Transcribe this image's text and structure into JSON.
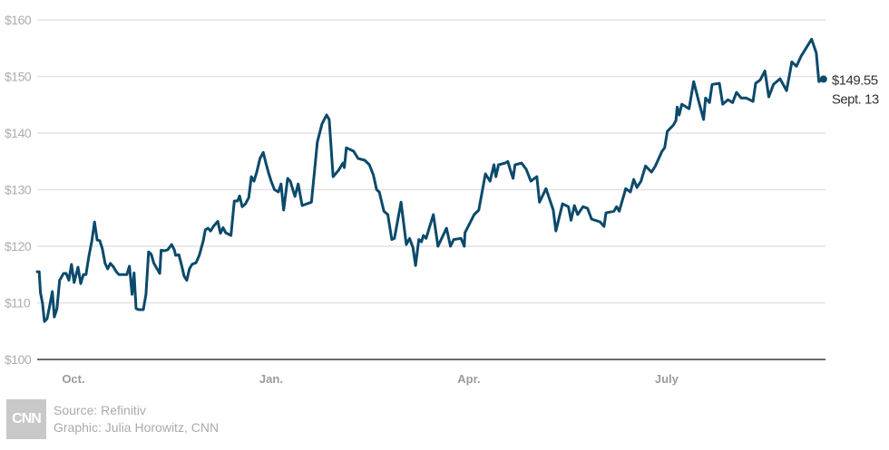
{
  "chart_data": {
    "type": "line",
    "title": "",
    "xlabel": "",
    "ylabel": "",
    "x_units": "months since Oct. 1",
    "ylim": [
      100,
      160
    ],
    "xlim": [
      -0.55,
      11.41
    ],
    "grid": true,
    "yticks": [
      100,
      110,
      120,
      130,
      140,
      150,
      160
    ],
    "ytick_labels": [
      "$100",
      "$110",
      "$120",
      "$130",
      "$140",
      "$150",
      "$160"
    ],
    "xticks": [
      0,
      3,
      6,
      9
    ],
    "xtick_labels": [
      "Oct.",
      "Jan.",
      "Apr.",
      "July"
    ],
    "line_color": "#0b4a6b",
    "series": [
      {
        "name": "Share price",
        "x": [
          -0.55,
          -0.52,
          -0.5,
          -0.47,
          -0.44,
          -0.4,
          -0.36,
          -0.32,
          -0.29,
          -0.25,
          -0.21,
          -0.15,
          -0.11,
          -0.07,
          -0.03,
          0.01,
          0.07,
          0.11,
          0.15,
          0.19,
          0.23,
          0.28,
          0.32,
          0.36,
          0.4,
          0.44,
          0.48,
          0.52,
          0.56,
          0.61,
          0.65,
          0.69,
          0.73,
          0.77,
          0.81,
          0.85,
          0.89,
          0.92,
          0.95,
          0.99,
          1.06,
          1.1,
          1.14,
          1.18,
          1.22,
          1.27,
          1.31,
          1.33,
          1.38,
          1.43,
          1.49,
          1.53,
          1.55,
          1.6,
          1.64,
          1.68,
          1.72,
          1.76,
          1.8,
          1.86,
          1.91,
          1.97,
          2.0,
          2.04,
          2.08,
          2.13,
          2.19,
          2.23,
          2.27,
          2.31,
          2.39,
          2.44,
          2.49,
          2.52,
          2.56,
          2.61,
          2.66,
          2.7,
          2.74,
          2.78,
          2.83,
          2.88,
          2.92,
          2.96,
          3.0,
          3.05,
          3.11,
          3.15,
          3.19,
          3.25,
          3.29,
          3.36,
          3.41,
          3.47,
          3.61,
          3.66,
          3.7,
          3.77,
          3.84,
          3.88,
          3.94,
          4.02,
          4.09,
          4.11,
          4.14,
          4.25,
          4.32,
          4.42,
          4.49,
          4.55,
          4.6,
          4.64,
          4.71,
          4.77,
          4.83,
          4.87,
          4.97,
          5.05,
          5.1,
          5.15,
          5.19,
          5.24,
          5.28,
          5.31,
          5.35,
          5.46,
          5.53,
          5.66,
          5.72,
          5.77,
          5.88,
          5.93,
          5.94,
          6.08,
          6.15,
          6.25,
          6.32,
          6.38,
          6.41,
          6.45,
          6.55,
          6.59,
          6.63,
          6.67,
          6.7,
          6.8,
          6.87,
          6.94,
          7.03,
          7.07,
          7.17,
          7.28,
          7.32,
          7.42,
          7.51,
          7.55,
          7.6,
          7.65,
          7.73,
          7.8,
          7.86,
          7.99,
          8.05,
          8.08,
          8.2,
          8.24,
          8.28,
          8.38,
          8.45,
          8.5,
          8.55,
          8.61,
          8.68,
          8.77,
          8.83,
          8.93,
          8.97,
          9.01,
          9.1,
          9.14,
          9.16,
          9.19,
          9.23,
          9.34,
          9.41,
          9.48,
          9.56,
          9.59,
          9.65,
          9.69,
          9.8,
          9.85,
          9.93,
          10.0,
          10.06,
          10.13,
          10.21,
          10.31,
          10.35,
          10.42,
          10.49,
          10.55,
          10.62,
          10.72,
          10.82,
          10.9,
          10.97,
          11.04,
          11.2,
          11.27,
          11.31,
          11.38
        ],
        "y": [
          115.5,
          115.5,
          111.8,
          110,
          106.7,
          107.2,
          109.5,
          112,
          107.5,
          109,
          114,
          115.2,
          115.2,
          114,
          116.8,
          113.6,
          116.3,
          113.4,
          115,
          115,
          118,
          121,
          124.3,
          121.1,
          121,
          119.5,
          117,
          116,
          117,
          116.3,
          115.5,
          115,
          115,
          115,
          115,
          116.5,
          111.5,
          115.3,
          109,
          108.8,
          108.8,
          111.5,
          119,
          118.6,
          117,
          116,
          115.2,
          119.3,
          119.2,
          119.4,
          120.3,
          119.4,
          118.4,
          118.5,
          116.7,
          114.7,
          114,
          116,
          116.8,
          117.1,
          118.4,
          121,
          122.9,
          123.2,
          122.7,
          123.6,
          124.4,
          122.3,
          123.3,
          122.4,
          121.9,
          128,
          128,
          128.9,
          127,
          127.5,
          128.6,
          132.3,
          131.5,
          133.1,
          135.5,
          136.6,
          134.7,
          133,
          131.5,
          130,
          129.6,
          131,
          126.4,
          132,
          131.5,
          128.8,
          131,
          127.2,
          127.8,
          133.6,
          138.4,
          141.6,
          143.2,
          142.4,
          132.3,
          133.4,
          134.7,
          133.9,
          137.4,
          136.8,
          135.5,
          135.2,
          134.4,
          132.6,
          130,
          129.6,
          126.2,
          125.6,
          121.2,
          121.4,
          127.8,
          120.3,
          121.4,
          119.8,
          116.6,
          121.2,
          120.8,
          121.9,
          121.4,
          125.6,
          120,
          123.2,
          120,
          121.2,
          121.4,
          120,
          122.4,
          125.6,
          126.4,
          132.8,
          131.5,
          134.4,
          132.3,
          134.4,
          134.7,
          135,
          133.4,
          132,
          134.4,
          134.7,
          133.6,
          131.5,
          132.3,
          127.8,
          130.2,
          126.4,
          122.7,
          127.5,
          127,
          124.6,
          127.2,
          125.6,
          127,
          126.7,
          124.8,
          124.3,
          123.5,
          125.9,
          126.2,
          127,
          126.2,
          130.2,
          129.6,
          131.8,
          130.4,
          131.5,
          134.2,
          133.1,
          134.2,
          136.8,
          137.4,
          140.3,
          141.4,
          142.2,
          144.6,
          143.2,
          145.1,
          144.3,
          149.1,
          145.9,
          142.4,
          146.2,
          145.4,
          148.6,
          148.8,
          145.1,
          145.9,
          145.4,
          147.2,
          146.2,
          146.2,
          145.6,
          148.8,
          149.4,
          151,
          146.4,
          148.6,
          149.6,
          147.5,
          152.6,
          151.8,
          153.6,
          156.6,
          154.2,
          149.1,
          149.55
        ]
      }
    ],
    "annotation": {
      "value_label": "$149.55",
      "date_label": "Sept. 13"
    }
  },
  "footer": {
    "logo_text": "CNN",
    "source": "Source: Refinitiv",
    "graphic": "Graphic: Julia Horowitz, CNN"
  }
}
